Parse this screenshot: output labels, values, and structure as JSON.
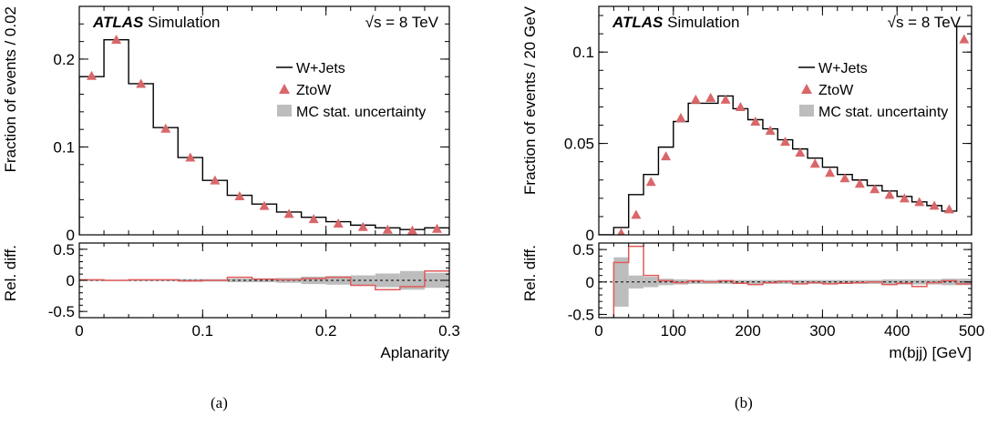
{
  "common": {
    "experiment": "ATLAS",
    "sim_label": "Simulation",
    "energy": "√s = 8 TeV",
    "legend": [
      "W+Jets",
      "ZtoW",
      "MC stat. uncertainty"
    ],
    "ratio_ylabel": "Rel. diff.",
    "colors": {
      "wjets": "#000000",
      "ztow": "#d9676a",
      "ratio_line": "#e05a5a",
      "uncertainty": "#bdbdbd"
    },
    "icons": {
      "ztow_marker": "triangle-up",
      "uncertainty_marker": "grey-box"
    }
  },
  "chart_data": [
    {
      "type": "line",
      "caption": "(a)",
      "xlabel": "Aplanarity",
      "ylabel": "Fraction of events / 0.02",
      "xlim": [
        0,
        0.3
      ],
      "ylim": [
        0,
        0.26
      ],
      "xticks": [
        0,
        0.1,
        0.2,
        0.3
      ],
      "yticks": [
        0.1,
        0.2
      ],
      "ytick_labels": [
        "0.1",
        "0.2"
      ],
      "bin_edges": [
        0,
        0.02,
        0.04,
        0.06,
        0.08,
        0.1,
        0.12,
        0.14,
        0.16,
        0.18,
        0.2,
        0.22,
        0.24,
        0.26,
        0.28,
        0.3
      ],
      "series": [
        {
          "name": "W+Jets",
          "style": "histogram",
          "values": [
            0.18,
            0.222,
            0.172,
            0.122,
            0.088,
            0.062,
            0.045,
            0.035,
            0.026,
            0.02,
            0.015,
            0.011,
            0.008,
            0.006,
            0.008
          ]
        },
        {
          "name": "ZtoW",
          "style": "markers",
          "x": [
            0.01,
            0.03,
            0.05,
            0.07,
            0.09,
            0.11,
            0.13,
            0.15,
            0.17,
            0.19,
            0.21,
            0.23,
            0.25,
            0.27,
            0.29
          ],
          "values": [
            0.181,
            0.222,
            0.172,
            0.121,
            0.088,
            0.062,
            0.044,
            0.033,
            0.024,
            0.018,
            0.013,
            0.009,
            0.006,
            0.005,
            0.007
          ]
        }
      ],
      "ratio": {
        "ylim": [
          -0.6,
          0.6
        ],
        "yticks": [
          -0.5,
          0,
          0.5
        ],
        "ytick_labels": [
          "-0.5",
          "0",
          "0.5"
        ],
        "values": [
          0.01,
          0.0,
          0.01,
          0.01,
          -0.01,
          0.0,
          0.05,
          0.02,
          0.01,
          0.03,
          0.05,
          -0.08,
          -0.15,
          -0.1,
          0.15
        ],
        "uncertainty": [
          0.01,
          0.01,
          0.01,
          0.01,
          0.02,
          0.02,
          0.03,
          0.03,
          0.04,
          0.06,
          0.07,
          0.08,
          0.11,
          0.15,
          0.12
        ]
      }
    },
    {
      "type": "line",
      "caption": "(b)",
      "xlabel": "m(bjj) [GeV]",
      "ylabel": "Fraction of events / 20 GeV",
      "xlim": [
        0,
        500
      ],
      "ylim": [
        0,
        0.125
      ],
      "xticks": [
        0,
        100,
        200,
        300,
        400,
        500
      ],
      "yticks": [
        0.05,
        0.1
      ],
      "ytick_labels": [
        "0.05",
        "0.1"
      ],
      "bin_edges": [
        0,
        20,
        40,
        60,
        80,
        100,
        120,
        140,
        160,
        180,
        200,
        220,
        240,
        260,
        280,
        300,
        320,
        340,
        360,
        380,
        400,
        420,
        440,
        460,
        480,
        500
      ],
      "series": [
        {
          "name": "W+Jets",
          "style": "histogram",
          "values": [
            0,
            0.004,
            0.022,
            0.033,
            0.048,
            0.062,
            0.072,
            0.072,
            0.076,
            0.069,
            0.063,
            0.058,
            0.052,
            0.047,
            0.042,
            0.037,
            0.033,
            0.03,
            0.027,
            0.024,
            0.021,
            0.018,
            0.016,
            0.013,
            0.114
          ]
        },
        {
          "name": "ZtoW",
          "style": "markers",
          "x": [
            30,
            50,
            70,
            90,
            110,
            130,
            150,
            170,
            190,
            210,
            230,
            250,
            270,
            290,
            310,
            330,
            350,
            370,
            390,
            410,
            430,
            450,
            470,
            490
          ],
          "values": [
            0.001,
            0.011,
            0.029,
            0.043,
            0.064,
            0.074,
            0.075,
            0.074,
            0.07,
            0.062,
            0.057,
            0.051,
            0.045,
            0.039,
            0.034,
            0.031,
            0.028,
            0.025,
            0.022,
            0.02,
            0.018,
            0.016,
            0.014,
            0.107
          ]
        }
      ],
      "ratio": {
        "ylim": [
          -0.55,
          0.6
        ],
        "yticks": [
          -0.5,
          0,
          0.5
        ],
        "ytick_labels": [
          "-0.5",
          "0",
          "0.5"
        ],
        "values": [
          -0.6,
          0.3,
          0.55,
          0.1,
          0.02,
          -0.01,
          0.02,
          0.0,
          0.02,
          -0.02,
          -0.04,
          -0.01,
          0.01,
          -0.03,
          -0.01,
          -0.03,
          -0.02,
          -0.01,
          0.0,
          -0.04,
          -0.02,
          -0.07,
          -0.01,
          0.02,
          -0.03
        ],
        "uncertainty": [
          0,
          0.38,
          0.1,
          0.08,
          0.05,
          0.04,
          0.03,
          0.03,
          0.03,
          0.03,
          0.03,
          0.03,
          0.03,
          0.03,
          0.03,
          0.03,
          0.03,
          0.03,
          0.03,
          0.04,
          0.04,
          0.04,
          0.04,
          0.05,
          0.05
        ]
      }
    }
  ]
}
